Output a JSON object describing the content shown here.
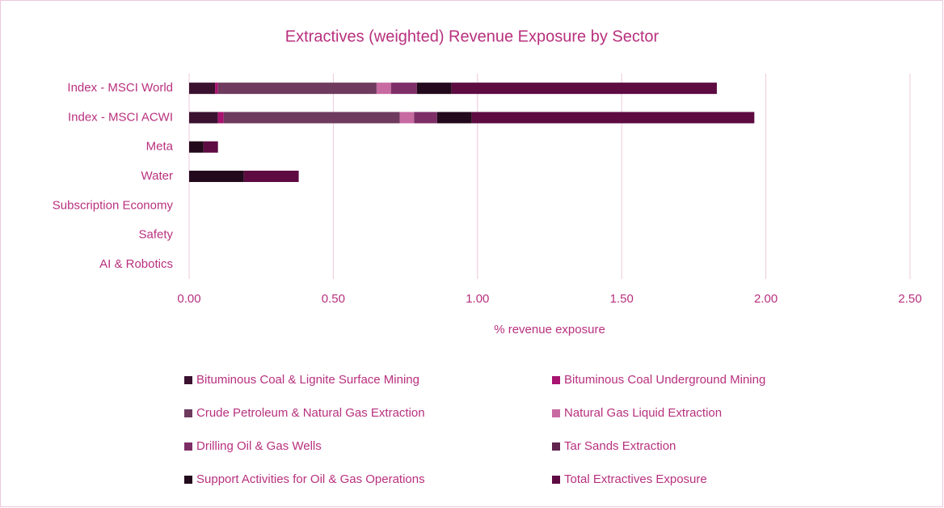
{
  "chart_data": {
    "type": "stacked_barh",
    "title": "Extractives (weighted) Revenue Exposure by Sector",
    "xlabel": "% revenue exposure",
    "categories": [
      "Index - MSCI World",
      "Index - MSCI ACWI",
      "Meta",
      "Water",
      "Subscription Economy",
      "Safety",
      "AI & Robotics"
    ],
    "series": [
      {
        "name": "Bituminous Coal & Lignite Surface Mining",
        "color": "#3a1230",
        "values": [
          0.09,
          0.1,
          0,
          0,
          0,
          0,
          0
        ]
      },
      {
        "name": "Bituminous Coal Underground Mining",
        "color": "#a8136f",
        "values": [
          0.01,
          0.02,
          0,
          0,
          0,
          0,
          0
        ]
      },
      {
        "name": "Crude Petroleum & Natural Gas Extraction",
        "color": "#6e3b5e",
        "values": [
          0.55,
          0.61,
          0,
          0,
          0,
          0,
          0
        ]
      },
      {
        "name": "Natural Gas Liquid Extraction",
        "color": "#c86aa2",
        "values": [
          0.05,
          0.05,
          0,
          0,
          0,
          0,
          0
        ]
      },
      {
        "name": "Drilling Oil & Gas Wells",
        "color": "#7e2e66",
        "values": [
          0.09,
          0.08,
          0,
          0,
          0,
          0,
          0
        ]
      },
      {
        "name": "Tar Sands Extraction",
        "color": "#60244f",
        "values": [
          0,
          0,
          0,
          0,
          0,
          0,
          0
        ]
      },
      {
        "name": "Support Activities for Oil & Gas Operations",
        "color": "#22091b",
        "values": [
          0.12,
          0.12,
          0.05,
          0.19,
          0,
          0,
          0
        ]
      },
      {
        "name": "Total Extractives Exposure",
        "color": "#5e0b42",
        "values": [
          0.92,
          0.98,
          0.05,
          0.19,
          0,
          0,
          0
        ]
      }
    ],
    "xlim": [
      0,
      2.5
    ],
    "xticks": [
      {
        "value": 0,
        "label": "0.00"
      },
      {
        "value": 0.5,
        "label": "0.50"
      },
      {
        "value": 1,
        "label": "1.00"
      },
      {
        "value": 1.5,
        "label": "1.50"
      },
      {
        "value": 2,
        "label": "2.00"
      },
      {
        "value": 2.5,
        "label": "2.50"
      }
    ],
    "grid": true,
    "legend": "bottom"
  }
}
